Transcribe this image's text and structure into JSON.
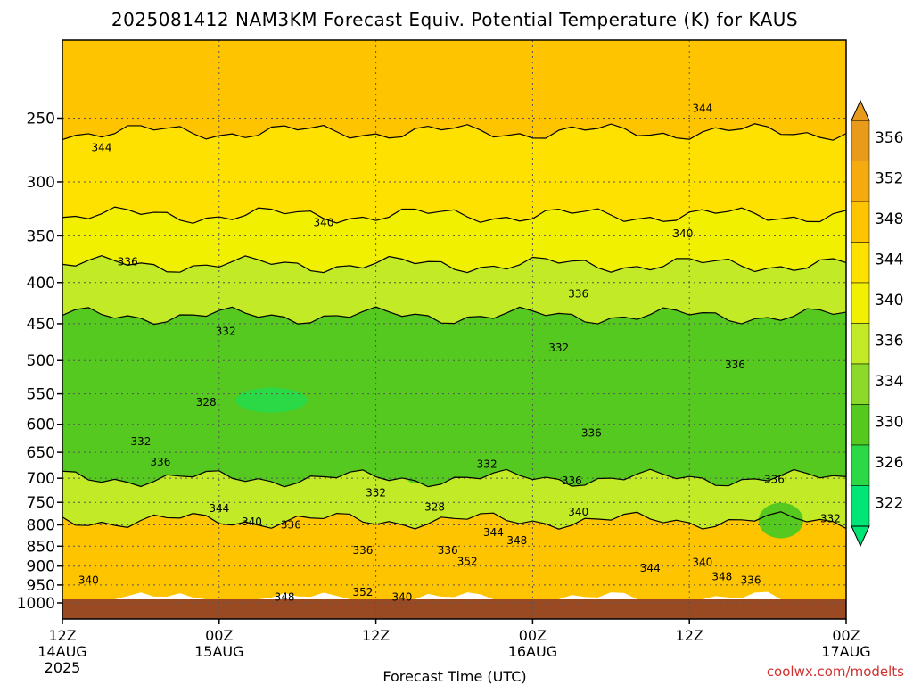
{
  "title": "2025081412 NAM3KM Forecast Equiv. Potential Temperature (K) for KAUS",
  "credit": "coolwx.com/modelts",
  "colors": {
    "ground": "#9a4a22",
    "background": "#ffffff"
  },
  "chart_data": {
    "type": "heatmap",
    "title": "2025081412 NAM3KM Forecast Equiv. Potential Temperature (K) for KAUS",
    "xlabel": "Forecast Time (UTC)",
    "ylabel": "",
    "x_ticks": [
      {
        "hour": 0,
        "lines": [
          "12Z",
          "14AUG",
          "2025"
        ]
      },
      {
        "hour": 12,
        "lines": [
          "00Z",
          "15AUG"
        ]
      },
      {
        "hour": 24,
        "lines": [
          "12Z"
        ]
      },
      {
        "hour": 36,
        "lines": [
          "00Z",
          "16AUG"
        ]
      },
      {
        "hour": 48,
        "lines": [
          "12Z"
        ]
      },
      {
        "hour": 60,
        "lines": [
          "00Z",
          "17AUG"
        ]
      }
    ],
    "xlim_hours": [
      0,
      60
    ],
    "y_ticks": [
      250,
      300,
      350,
      400,
      450,
      500,
      550,
      600,
      650,
      700,
      750,
      800,
      850,
      900,
      950,
      1000
    ],
    "ylim_hPa": [
      1000,
      200
    ],
    "y_scale": "log-pressure",
    "grid": true,
    "colorbar": {
      "labels": [
        356,
        352,
        348,
        344,
        340,
        336,
        334,
        330,
        326,
        322
      ],
      "colors": [
        "#e89a1a",
        "#f5ab10",
        "#ffc400",
        "#ffe100",
        "#f0f000",
        "#c2ea26",
        "#8cd82b",
        "#55c920",
        "#2bd845",
        "#00e676"
      ],
      "extend": "both"
    },
    "layers": [
      {
        "p_top": 200,
        "p_bottom": 260,
        "theta_e": 348
      },
      {
        "p_top": 260,
        "p_bottom": 330,
        "theta_e": 344
      },
      {
        "p_top": 330,
        "p_bottom": 380,
        "theta_e": 340
      },
      {
        "p_top": 380,
        "p_bottom": 440,
        "theta_e": 336
      },
      {
        "p_top": 440,
        "p_bottom": 700,
        "theta_e": 332
      },
      {
        "p_top": 700,
        "p_bottom": 790,
        "theta_e": 336
      },
      {
        "p_top": 790,
        "p_bottom": 990,
        "theta_e": 348
      }
    ],
    "contour_labels": [
      {
        "text": "344",
        "hour": 3.0,
        "p": 272
      },
      {
        "text": "344",
        "hour": 49.0,
        "p": 243
      },
      {
        "text": "340",
        "hour": 20.0,
        "p": 337
      },
      {
        "text": "340",
        "hour": 47.5,
        "p": 348
      },
      {
        "text": "336",
        "hour": 5.0,
        "p": 377
      },
      {
        "text": "336",
        "hour": 39.5,
        "p": 413
      },
      {
        "text": "332",
        "hour": 12.5,
        "p": 460
      },
      {
        "text": "332",
        "hour": 38.0,
        "p": 482
      },
      {
        "text": "336",
        "hour": 51.5,
        "p": 506
      },
      {
        "text": "328",
        "hour": 11.0,
        "p": 563
      },
      {
        "text": "336",
        "hour": 40.5,
        "p": 615
      },
      {
        "text": "332",
        "hour": 6.0,
        "p": 630
      },
      {
        "text": "336",
        "hour": 7.5,
        "p": 668
      },
      {
        "text": "332",
        "hour": 32.5,
        "p": 673
      },
      {
        "text": "336",
        "hour": 39.0,
        "p": 705
      },
      {
        "text": "336",
        "hour": 54.5,
        "p": 702
      },
      {
        "text": "332",
        "hour": 24.0,
        "p": 730
      },
      {
        "text": "328",
        "hour": 28.5,
        "p": 760
      },
      {
        "text": "344",
        "hour": 12.0,
        "p": 763
      },
      {
        "text": "340",
        "hour": 14.5,
        "p": 793
      },
      {
        "text": "336",
        "hour": 17.5,
        "p": 800
      },
      {
        "text": "340",
        "hour": 39.5,
        "p": 771
      },
      {
        "text": "332",
        "hour": 58.8,
        "p": 786
      },
      {
        "text": "344",
        "hour": 33.0,
        "p": 817
      },
      {
        "text": "348",
        "hour": 34.8,
        "p": 836
      },
      {
        "text": "336",
        "hour": 23.0,
        "p": 860
      },
      {
        "text": "336",
        "hour": 29.5,
        "p": 860
      },
      {
        "text": "352",
        "hour": 31.0,
        "p": 888
      },
      {
        "text": "340",
        "hour": 49.0,
        "p": 890
      },
      {
        "text": "344",
        "hour": 45.0,
        "p": 905
      },
      {
        "text": "348",
        "hour": 50.5,
        "p": 928
      },
      {
        "text": "336",
        "hour": 52.7,
        "p": 937
      },
      {
        "text": "340",
        "hour": 2.0,
        "p": 937
      },
      {
        "text": "348",
        "hour": 17.0,
        "p": 983
      },
      {
        "text": "352",
        "hour": 23.0,
        "p": 970
      },
      {
        "text": "340",
        "hour": 26.0,
        "p": 983
      }
    ]
  }
}
